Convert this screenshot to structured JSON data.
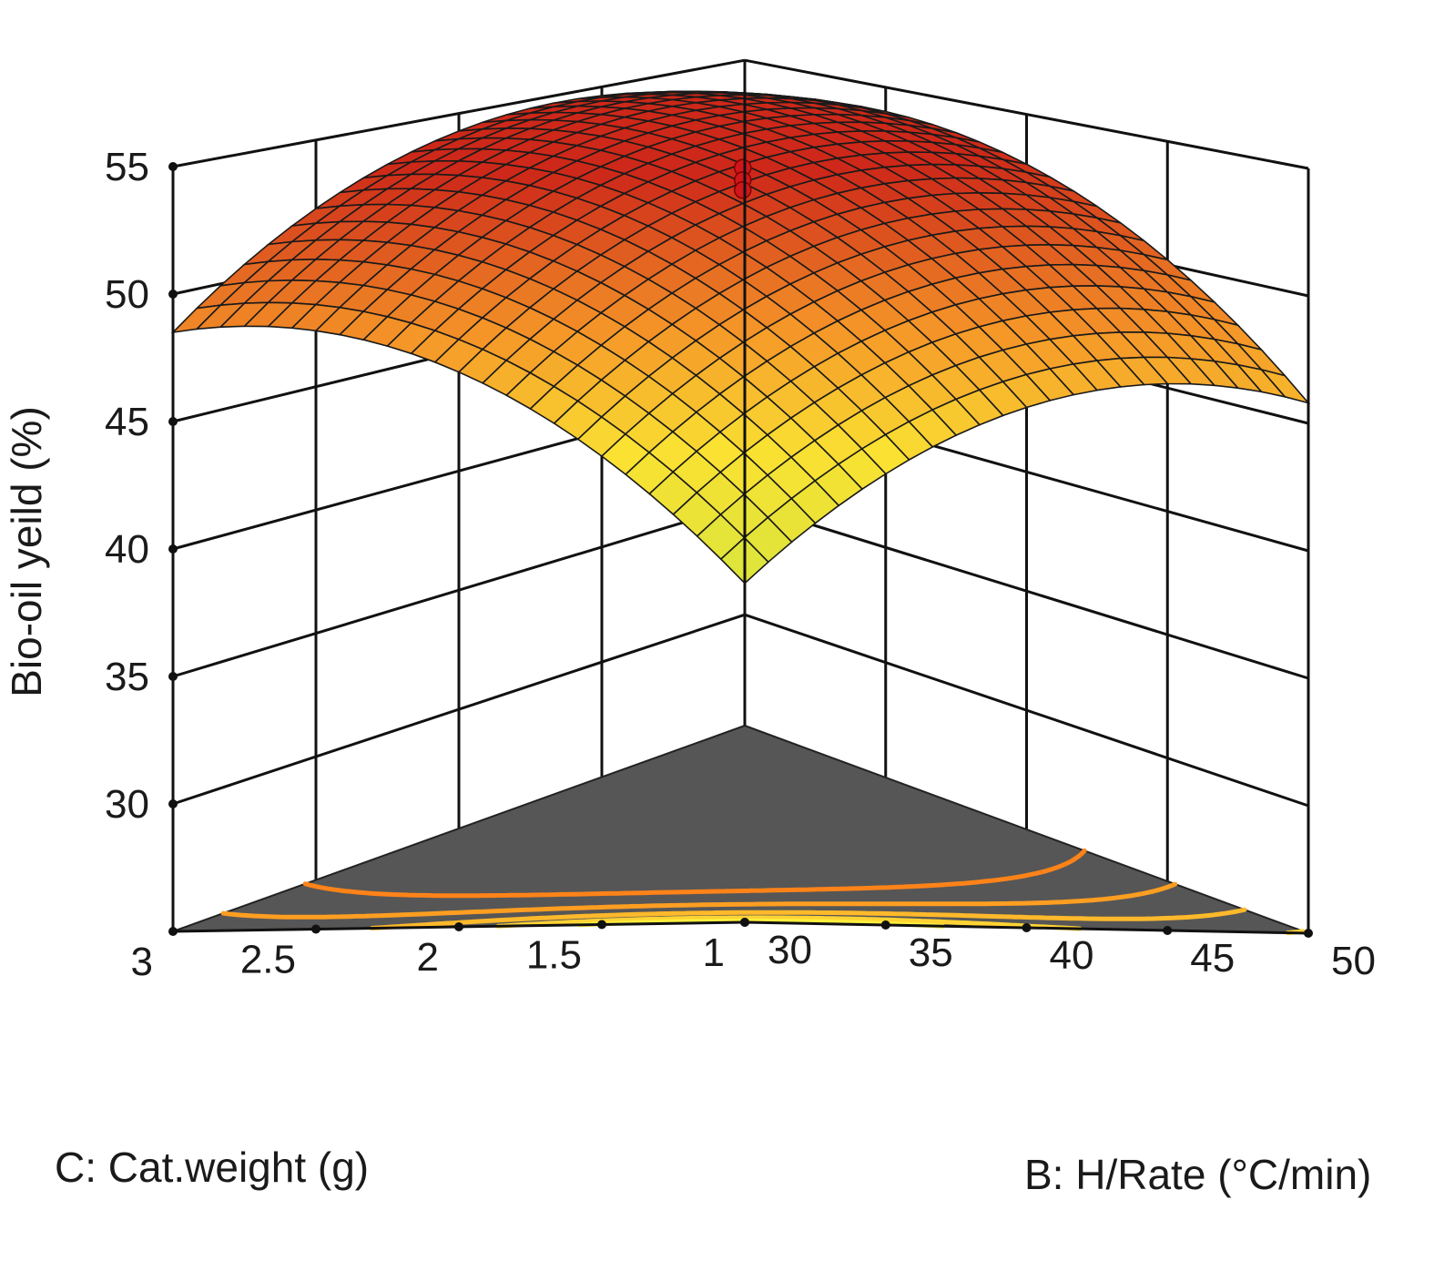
{
  "chart_data": {
    "type": "surface3d",
    "title": "",
    "zlabel": "Bio-oil yeild (%)",
    "zlim": [
      25,
      55
    ],
    "zticks": [
      "30",
      "35",
      "40",
      "45",
      "50",
      "55"
    ],
    "x_axis": {
      "label": "B: H/Rate (°C/min)",
      "range": [
        30,
        50
      ],
      "ticks": [
        "30",
        "35",
        "40",
        "45",
        "50"
      ]
    },
    "y_axis": {
      "label": "C: Cat.weight (g)",
      "range": [
        1,
        3
      ],
      "ticks": [
        "1",
        "1.5",
        "2",
        "2.5",
        "3"
      ]
    },
    "surface": {
      "model": "quadratic",
      "center": {
        "hrate": 40,
        "catweight": 2
      },
      "peak_value": 53.2,
      "corner_values": {
        "hrate30_cat1": 38.3,
        "hrate50_cat1": 45.8,
        "hrate30_cat3": 48.5,
        "hrate50_cat3": 53.3
      },
      "grid_lines": 24
    },
    "contour_levels": [
      52,
      50,
      48,
      46,
      44
    ],
    "design_points": [
      {
        "hrate": 40,
        "catweight": 2,
        "yield": 53.8
      },
      {
        "hrate": 40,
        "catweight": 2,
        "yield": 53.3
      },
      {
        "hrate": 40,
        "catweight": 2,
        "yield": 52.9
      }
    ]
  }
}
